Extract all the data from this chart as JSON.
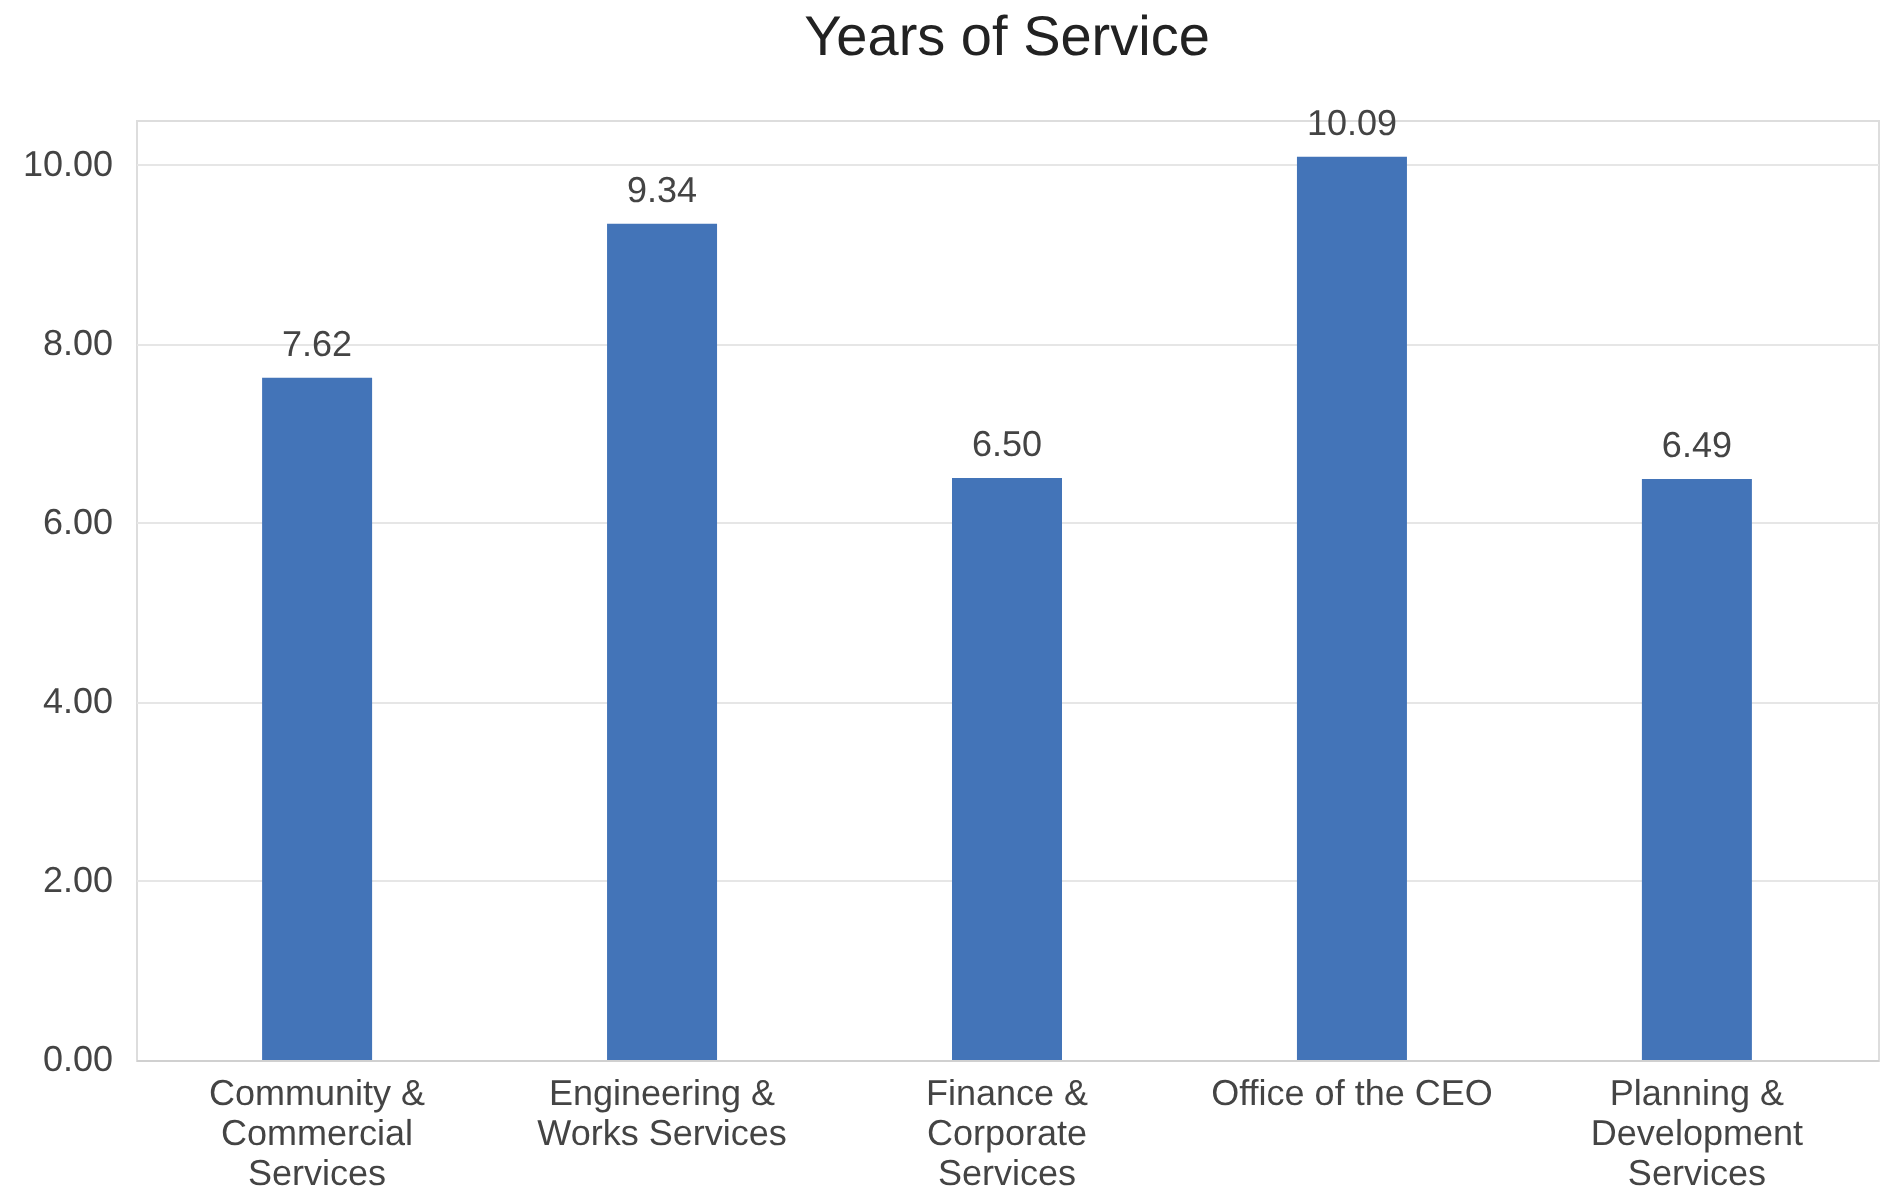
{
  "chart_data": {
    "type": "bar",
    "title": "Years of Service",
    "categories": [
      "Community & Commercial Services",
      "Engineering & Works Services",
      "Finance & Corporate Services",
      "Office of the CEO",
      "Planning & Development Services"
    ],
    "values": [
      7.62,
      9.34,
      6.5,
      10.09,
      6.49
    ],
    "color": "#4374b8",
    "ylim": [
      0,
      10.5
    ],
    "yticks": [
      {
        "value": 0,
        "label": "0.00"
      },
      {
        "value": 2,
        "label": "2.00"
      },
      {
        "value": 4,
        "label": "4.00"
      },
      {
        "value": 6,
        "label": "6.00"
      },
      {
        "value": 8,
        "label": "8.00"
      },
      {
        "value": 10,
        "label": "10.00"
      }
    ],
    "value_labels": [
      "7.62",
      "9.34",
      "6.50",
      "10.09",
      "6.49"
    ],
    "grid": "y"
  }
}
